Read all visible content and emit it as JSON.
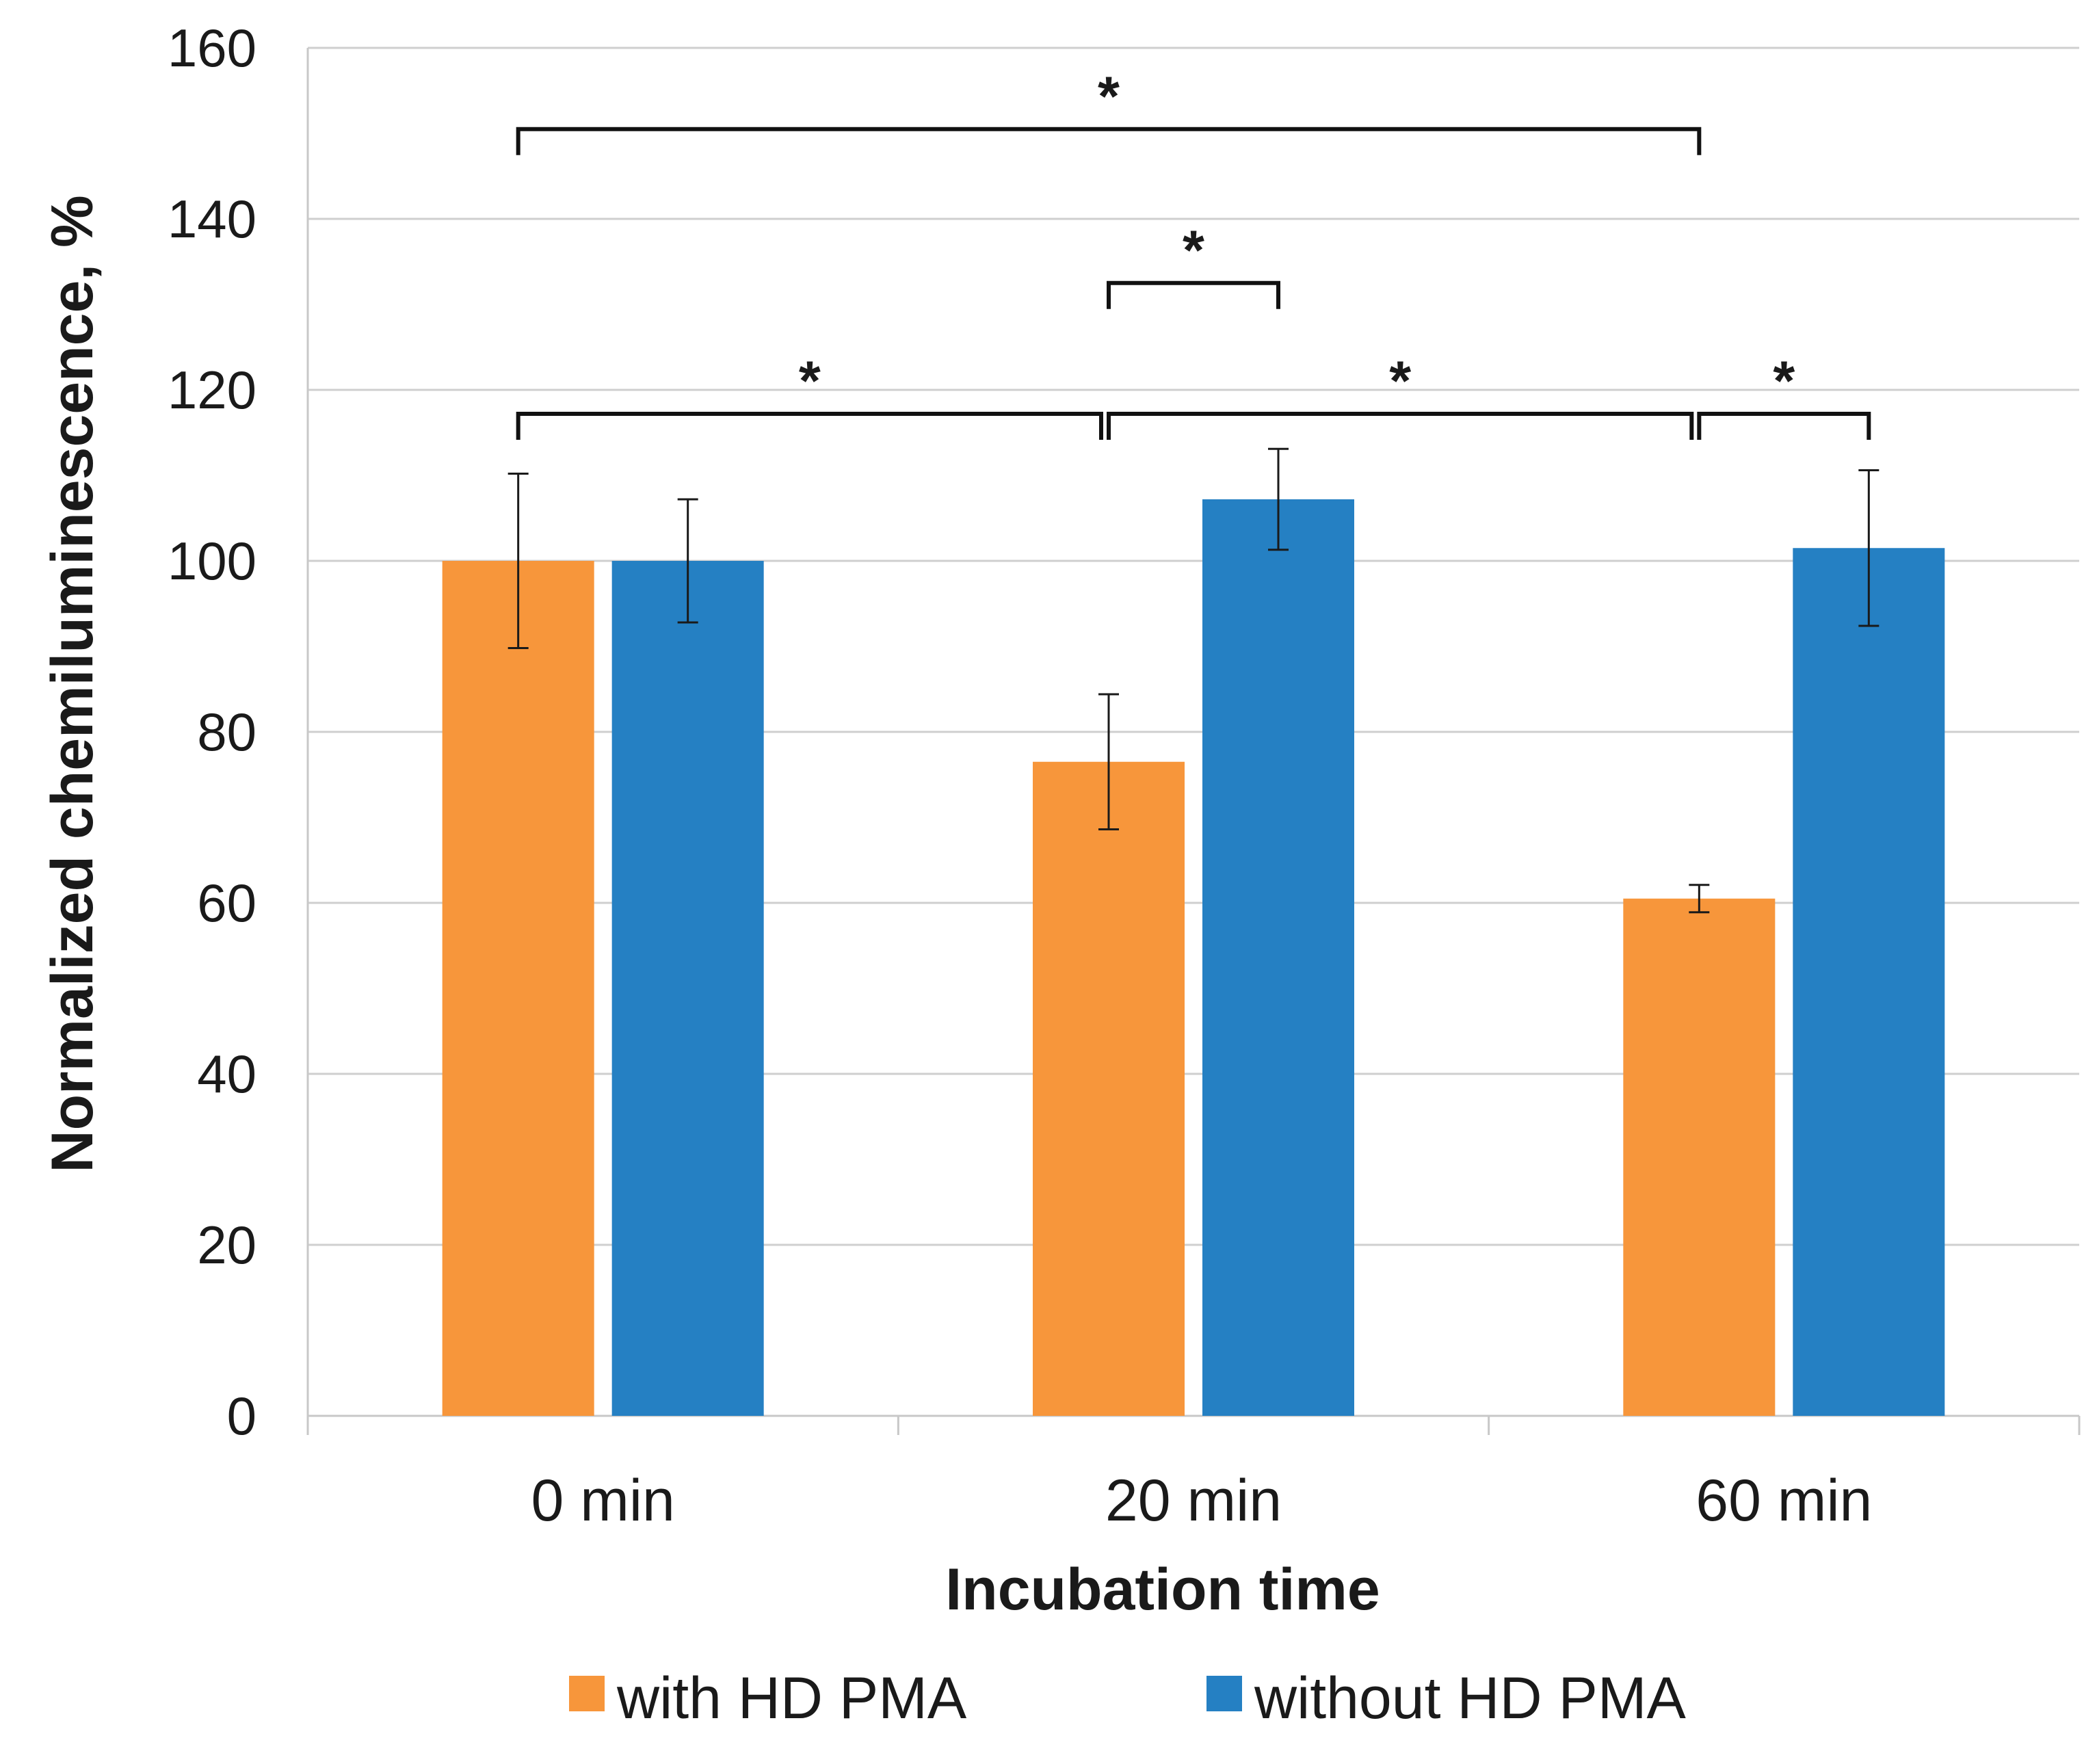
{
  "chart_data": {
    "type": "bar",
    "title": "",
    "xlabel": "Incubation time",
    "ylabel": "Normalized chemiluminescence, %",
    "categories": [
      "0 min",
      "20 min",
      "60 min"
    ],
    "ylim": [
      0,
      160
    ],
    "yticks": [
      0,
      20,
      40,
      60,
      80,
      100,
      120,
      140,
      160
    ],
    "grid": true,
    "legend_position": "bottom",
    "series": [
      {
        "name": "with HD PMA",
        "color": "#f7963b",
        "values": [
          100,
          76.5,
          60.5
        ],
        "errors": [
          10.2,
          7.9,
          1.6
        ]
      },
      {
        "name": "without HD PMA",
        "color": "#2580c3",
        "values": [
          100,
          107.2,
          101.5
        ],
        "errors": [
          7.2,
          5.9,
          9.1
        ]
      }
    ],
    "significance": [
      {
        "label": "*",
        "from": {
          "category": 0,
          "series": 0
        },
        "to": {
          "category": 2,
          "series": 0
        },
        "level": 150.5
      },
      {
        "label": "*",
        "from": {
          "category": 1,
          "series": 0
        },
        "to": {
          "category": 1,
          "series": 1
        },
        "level": 132.5
      },
      {
        "label": "*",
        "from": {
          "category": 0,
          "series": 0
        },
        "to": {
          "category": 1,
          "series": 0
        },
        "level": 117.2
      },
      {
        "label": "*",
        "from": {
          "category": 1,
          "series": 0
        },
        "to": {
          "category": 2,
          "series": 0
        },
        "level": 117.2
      },
      {
        "label": "*",
        "from": {
          "category": 2,
          "series": 0
        },
        "to": {
          "category": 2,
          "series": 1
        },
        "level": 117.2
      }
    ]
  }
}
